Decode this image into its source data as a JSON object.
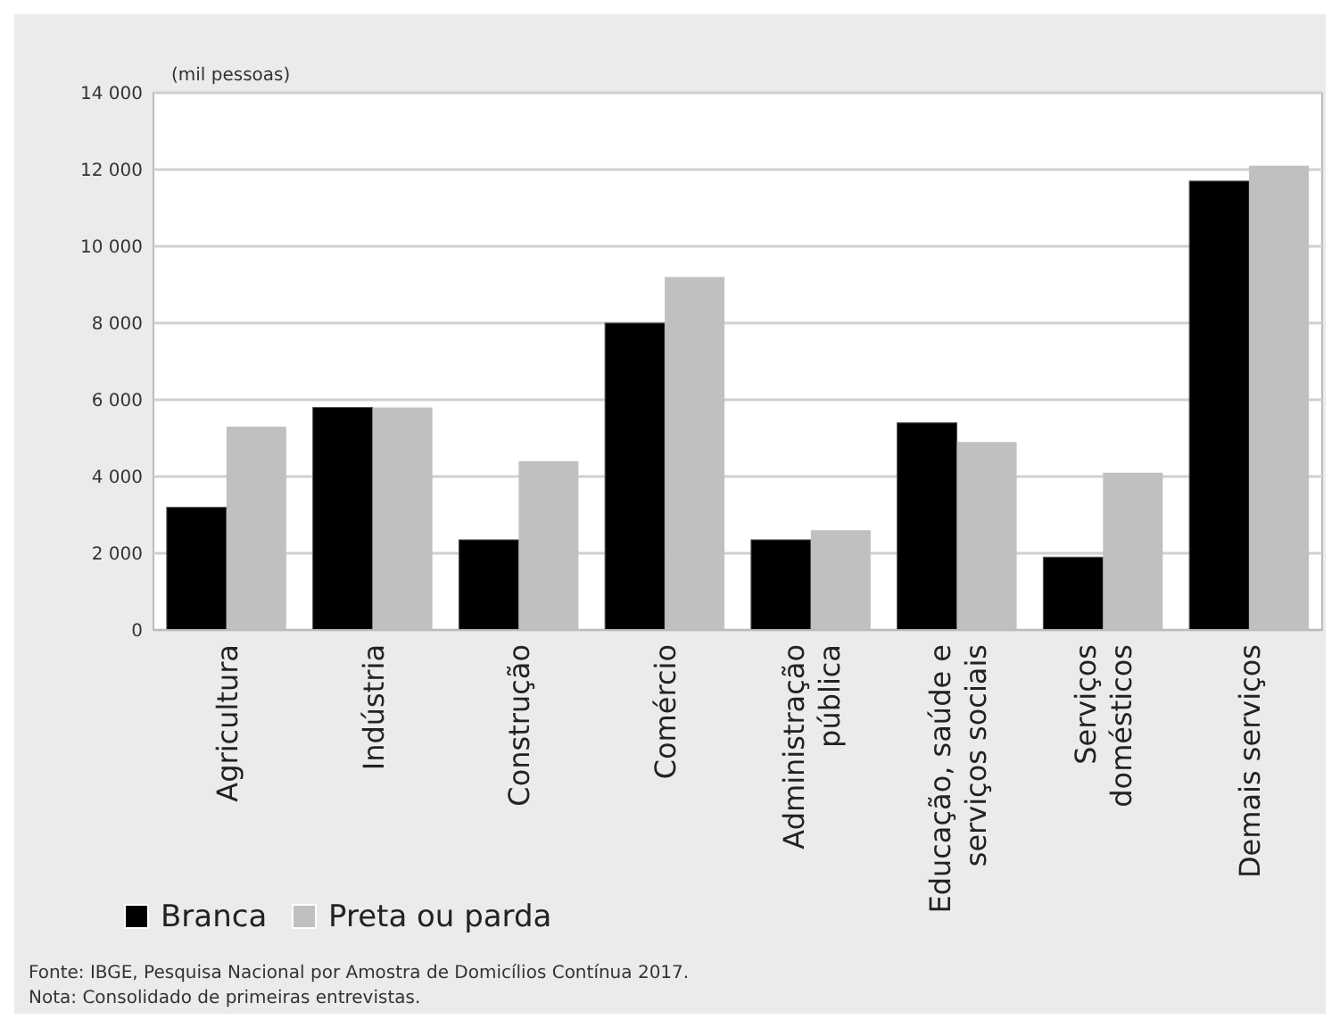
{
  "chart_data": {
    "type": "bar",
    "ylabel": "(mil pessoas)",
    "categories": [
      "Agricultura",
      "Indústria",
      "Construção",
      "Comércio",
      "Administração pública",
      "Educação, saúde e serviços sociais",
      "Serviços domésticos",
      "Demais serviços"
    ],
    "series": [
      {
        "name": "Branca",
        "color": "#000000",
        "values": [
          3200,
          5800,
          2350,
          8000,
          2350,
          5400,
          1900,
          11700
        ]
      },
      {
        "name": "Preta ou parda",
        "color": "#c0c0c0",
        "values": [
          5300,
          5800,
          4400,
          9200,
          2600,
          4900,
          4100,
          12100
        ]
      }
    ],
    "ylim": [
      0,
      14000
    ],
    "yticks": [
      {
        "value": 0,
        "label": "0"
      },
      {
        "value": 2000,
        "label": "2 000"
      },
      {
        "value": 4000,
        "label": "4 000"
      },
      {
        "value": 6000,
        "label": "6 000"
      },
      {
        "value": 8000,
        "label": "8 000"
      },
      {
        "value": 10000,
        "label": "10 000"
      },
      {
        "value": 12000,
        "label": "12 000"
      },
      {
        "value": 14000,
        "label": "14 000"
      }
    ],
    "grid": "y",
    "legend": "bottom left",
    "annotations": [
      "Fonte: IBGE, Pesquisa Nacional por Amostra de Domicílios Contínua 2017.",
      "Nota: Consolidado de primeiras entrevistas."
    ]
  }
}
